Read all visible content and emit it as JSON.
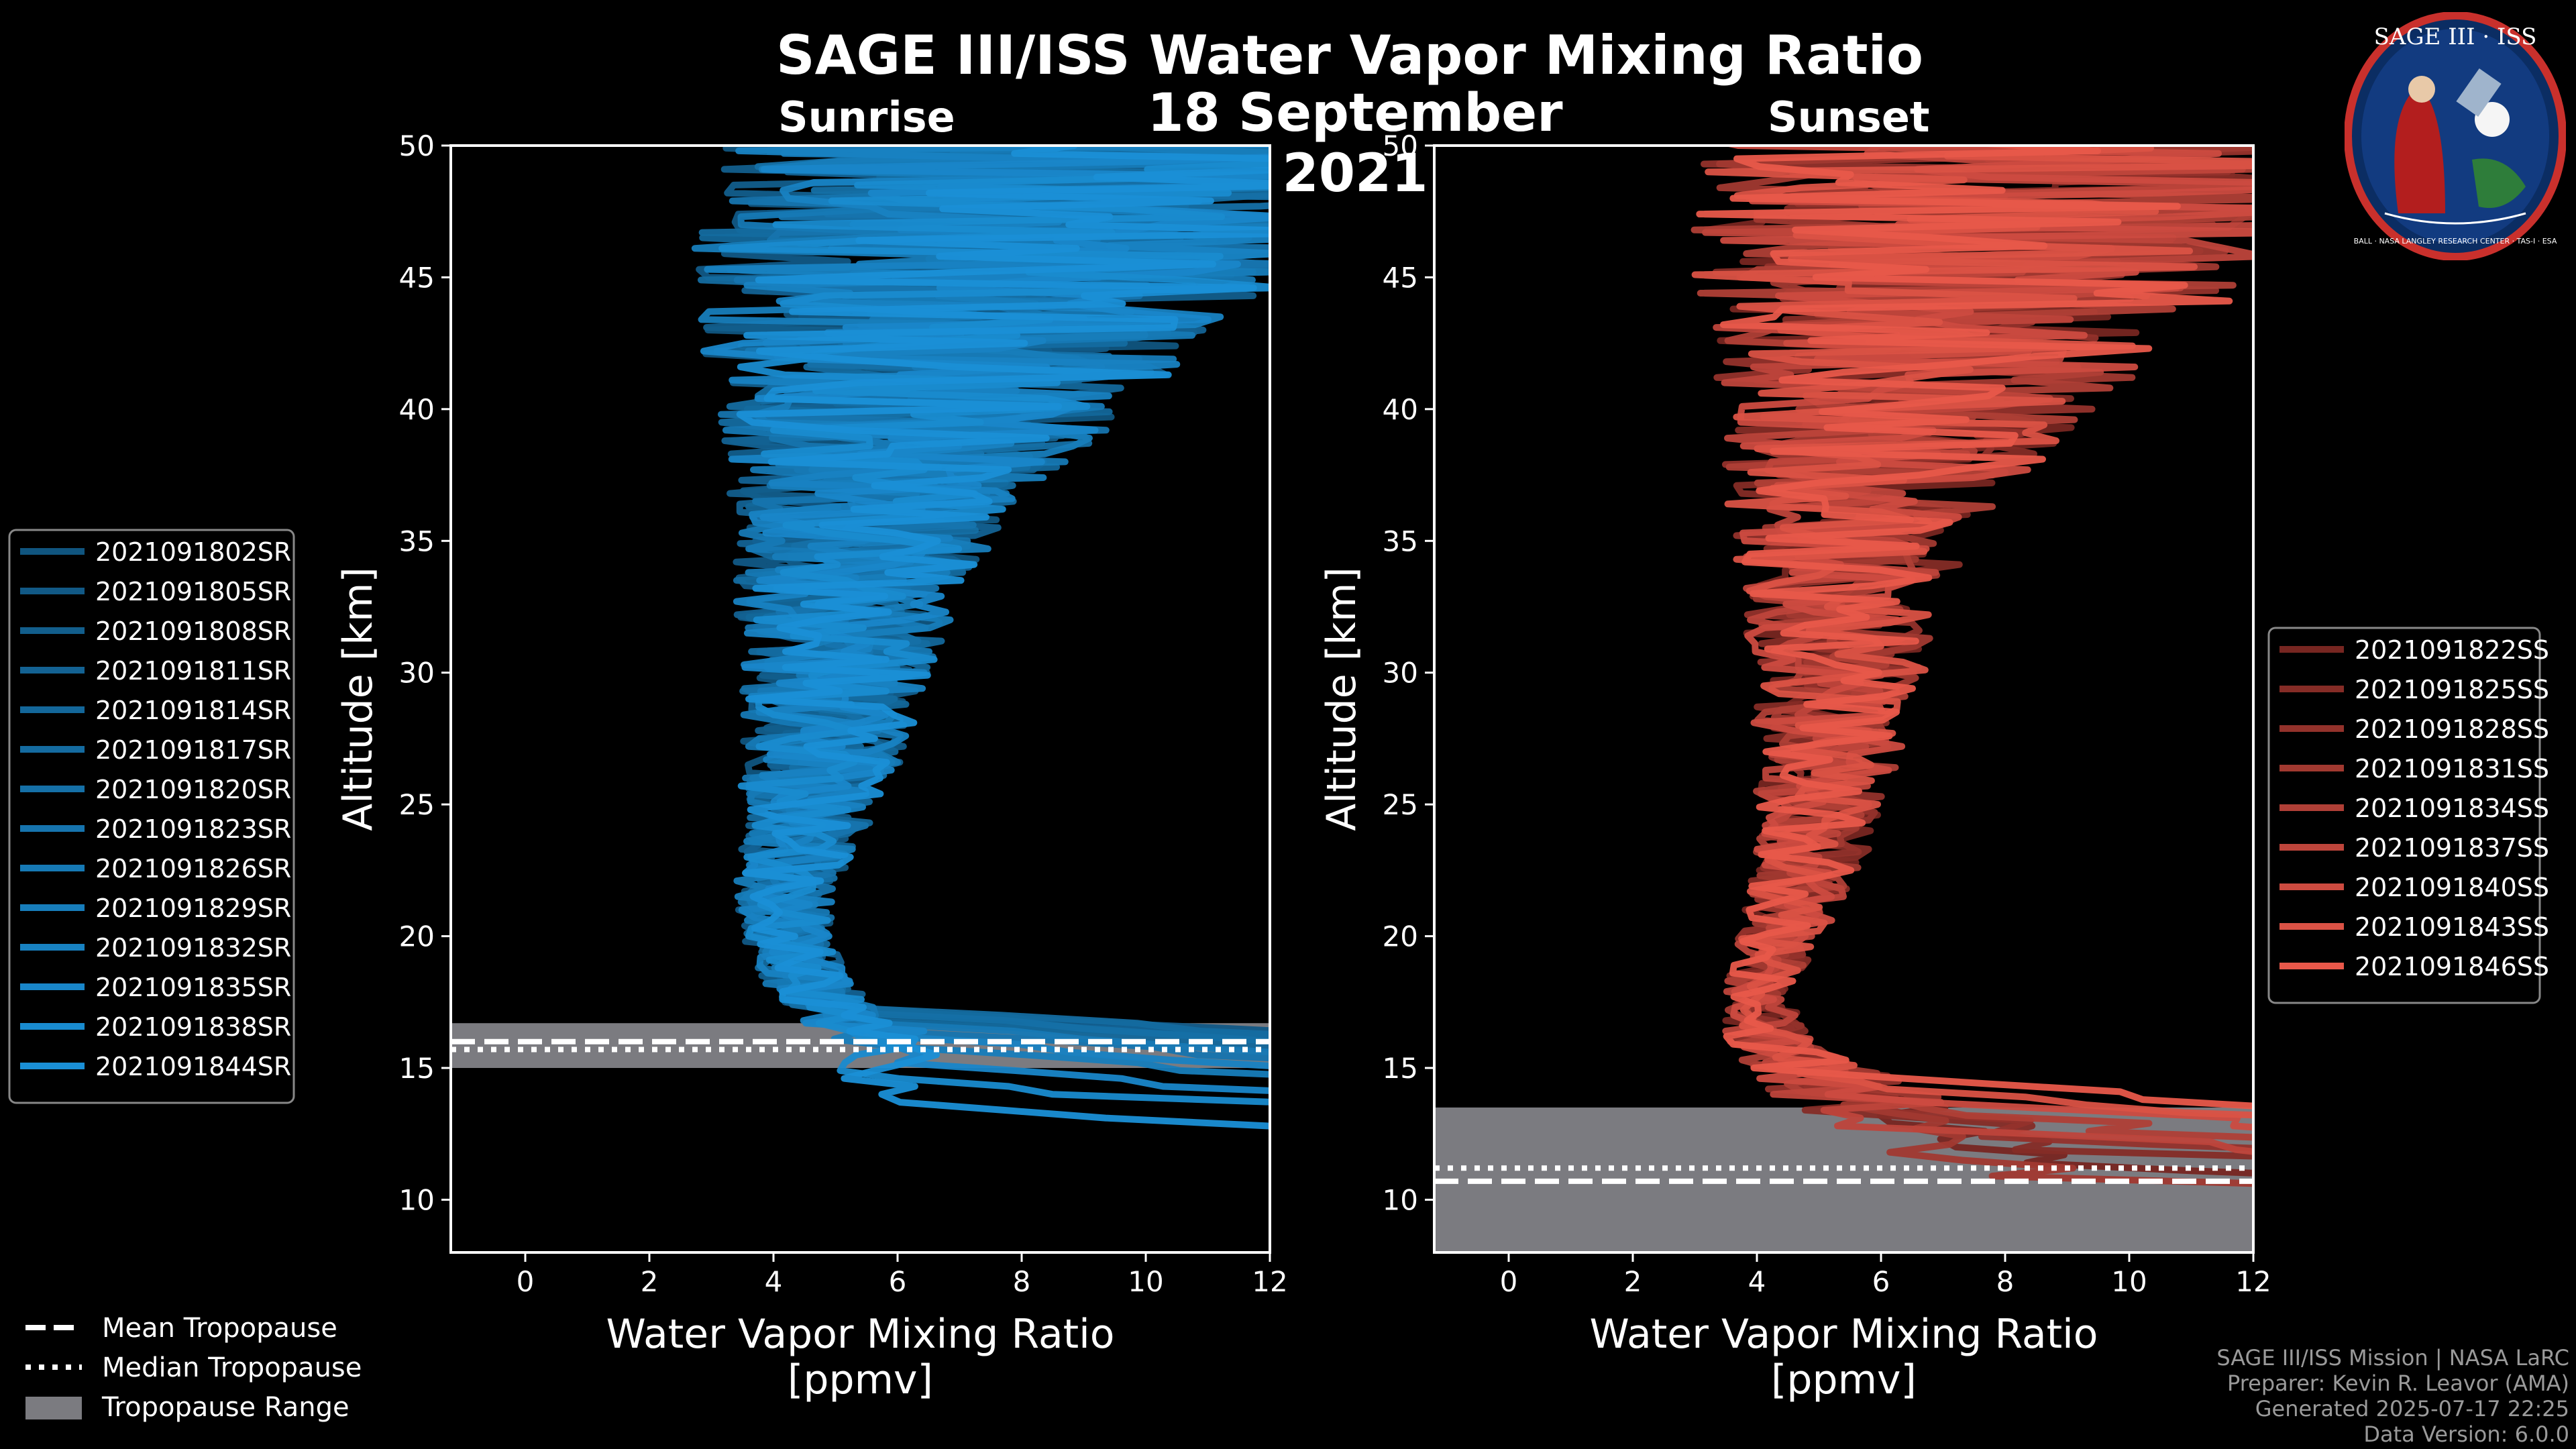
{
  "title": "SAGE III/ISS Water Vapor Mixing Ratio",
  "date": "18 September 2021",
  "footer": {
    "mission": "SAGE III/ISS Mission | NASA LaRC",
    "preparer": "Preparer: Kevin R. Leavor (AMA)",
    "generated": "Generated 2025-07-17 22:25",
    "version": "Data Version: 6.0.0"
  },
  "logo": {
    "title": "SAGE III · ISS",
    "ring_text": "BALL · NASA LANGLEY RESEARCH CENTER · TAS-I · ESA"
  },
  "colors": {
    "sunrise": "#1a8fd6",
    "sunset": "#e8584a",
    "background": "#000000",
    "tropopause": "#7b7b80"
  },
  "chart_data": [
    {
      "type": "line",
      "title": "Sunrise",
      "xlabel": "Water Vapor Mixing Ratio\n[ppmv]",
      "ylabel": "Altitude [km]",
      "xlim": [
        -1.2,
        12
      ],
      "ylim": [
        8,
        50
      ],
      "xticks": [
        0,
        2,
        4,
        6,
        8,
        10,
        12
      ],
      "yticks": [
        10,
        15,
        20,
        25,
        30,
        35,
        40,
        45,
        50
      ],
      "legend_position": "left",
      "series": [
        {
          "name": "2021091802SR",
          "lowest_km": 16.0
        },
        {
          "name": "2021091805SR",
          "lowest_km": 16.2
        },
        {
          "name": "2021091808SR",
          "lowest_km": 15.8
        },
        {
          "name": "2021091811SR",
          "lowest_km": 16.0
        },
        {
          "name": "2021091814SR",
          "lowest_km": 15.6
        },
        {
          "name": "2021091817SR",
          "lowest_km": 16.1
        },
        {
          "name": "2021091820SR",
          "lowest_km": 15.9
        },
        {
          "name": "2021091823SR",
          "lowest_km": 15.2
        },
        {
          "name": "2021091826SR",
          "lowest_km": 15.5
        },
        {
          "name": "2021091829SR",
          "lowest_km": 14.6
        },
        {
          "name": "2021091832SR",
          "lowest_km": 15.0
        },
        {
          "name": "2021091835SR",
          "lowest_km": 14.0
        },
        {
          "name": "2021091838SR",
          "lowest_km": 13.4
        },
        {
          "name": "2021091844SR",
          "lowest_km": 12.5
        }
      ],
      "profile_envelope": {
        "altitude_km": [
          16,
          18,
          20,
          22,
          24,
          26,
          28,
          30,
          33,
          36,
          39,
          42,
          45,
          48,
          50
        ],
        "median_ppmv": [
          5.8,
          4.6,
          4.2,
          4.2,
          4.5,
          4.7,
          4.9,
          5.0,
          5.2,
          5.6,
          6.2,
          6.8,
          7.5,
          8.5,
          9.0
        ],
        "spread_ppmv": [
          0.7,
          0.5,
          0.5,
          0.6,
          0.7,
          0.9,
          1.0,
          1.1,
          1.3,
          1.6,
          2.2,
          2.8,
          3.5,
          4.0,
          4.2
        ]
      },
      "tropopause": {
        "mean_km": 16.0,
        "median_km": 15.7,
        "range_km": [
          15.0,
          16.7
        ]
      }
    },
    {
      "type": "line",
      "title": "Sunset",
      "xlabel": "Water Vapor Mixing Ratio\n[ppmv]",
      "ylabel": "Altitude [km]",
      "xlim": [
        -1.2,
        12
      ],
      "ylim": [
        8,
        50
      ],
      "xticks": [
        0,
        2,
        4,
        6,
        8,
        10,
        12
      ],
      "yticks": [
        10,
        15,
        20,
        25,
        30,
        35,
        40,
        45,
        50
      ],
      "legend_position": "right",
      "series": [
        {
          "name": "2021091822SS",
          "lowest_km": 10.5
        },
        {
          "name": "2021091825SS",
          "lowest_km": 11.0
        },
        {
          "name": "2021091828SS",
          "lowest_km": 11.5
        },
        {
          "name": "2021091831SS",
          "lowest_km": 10.0
        },
        {
          "name": "2021091834SS",
          "lowest_km": 12.0
        },
        {
          "name": "2021091837SS",
          "lowest_km": 11.3
        },
        {
          "name": "2021091840SS",
          "lowest_km": 12.5
        },
        {
          "name": "2021091843SS",
          "lowest_km": 13.0
        },
        {
          "name": "2021091846SS",
          "lowest_km": 13.5
        }
      ],
      "profile_envelope": {
        "altitude_km": [
          12,
          14,
          16,
          18,
          20,
          22,
          24,
          26,
          28,
          30,
          33,
          36,
          39,
          42,
          45,
          48,
          50
        ],
        "median_ppmv": [
          8.0,
          5.5,
          4.2,
          4.0,
          4.4,
          4.7,
          5.0,
          5.1,
          5.2,
          5.3,
          5.4,
          5.6,
          6.2,
          6.8,
          7.5,
          8.5,
          9.0
        ],
        "spread_ppmv": [
          1.5,
          0.9,
          0.5,
          0.4,
          0.5,
          0.6,
          0.7,
          0.8,
          0.9,
          1.0,
          1.2,
          1.5,
          2.0,
          2.6,
          3.3,
          4.0,
          4.3
        ]
      },
      "tropopause": {
        "mean_km": 10.7,
        "median_km": 11.2,
        "range_km": [
          8.0,
          13.5
        ]
      }
    }
  ],
  "tropopause_legend": [
    "Mean Tropopause",
    "Median Tropopause",
    "Tropopause Range"
  ]
}
